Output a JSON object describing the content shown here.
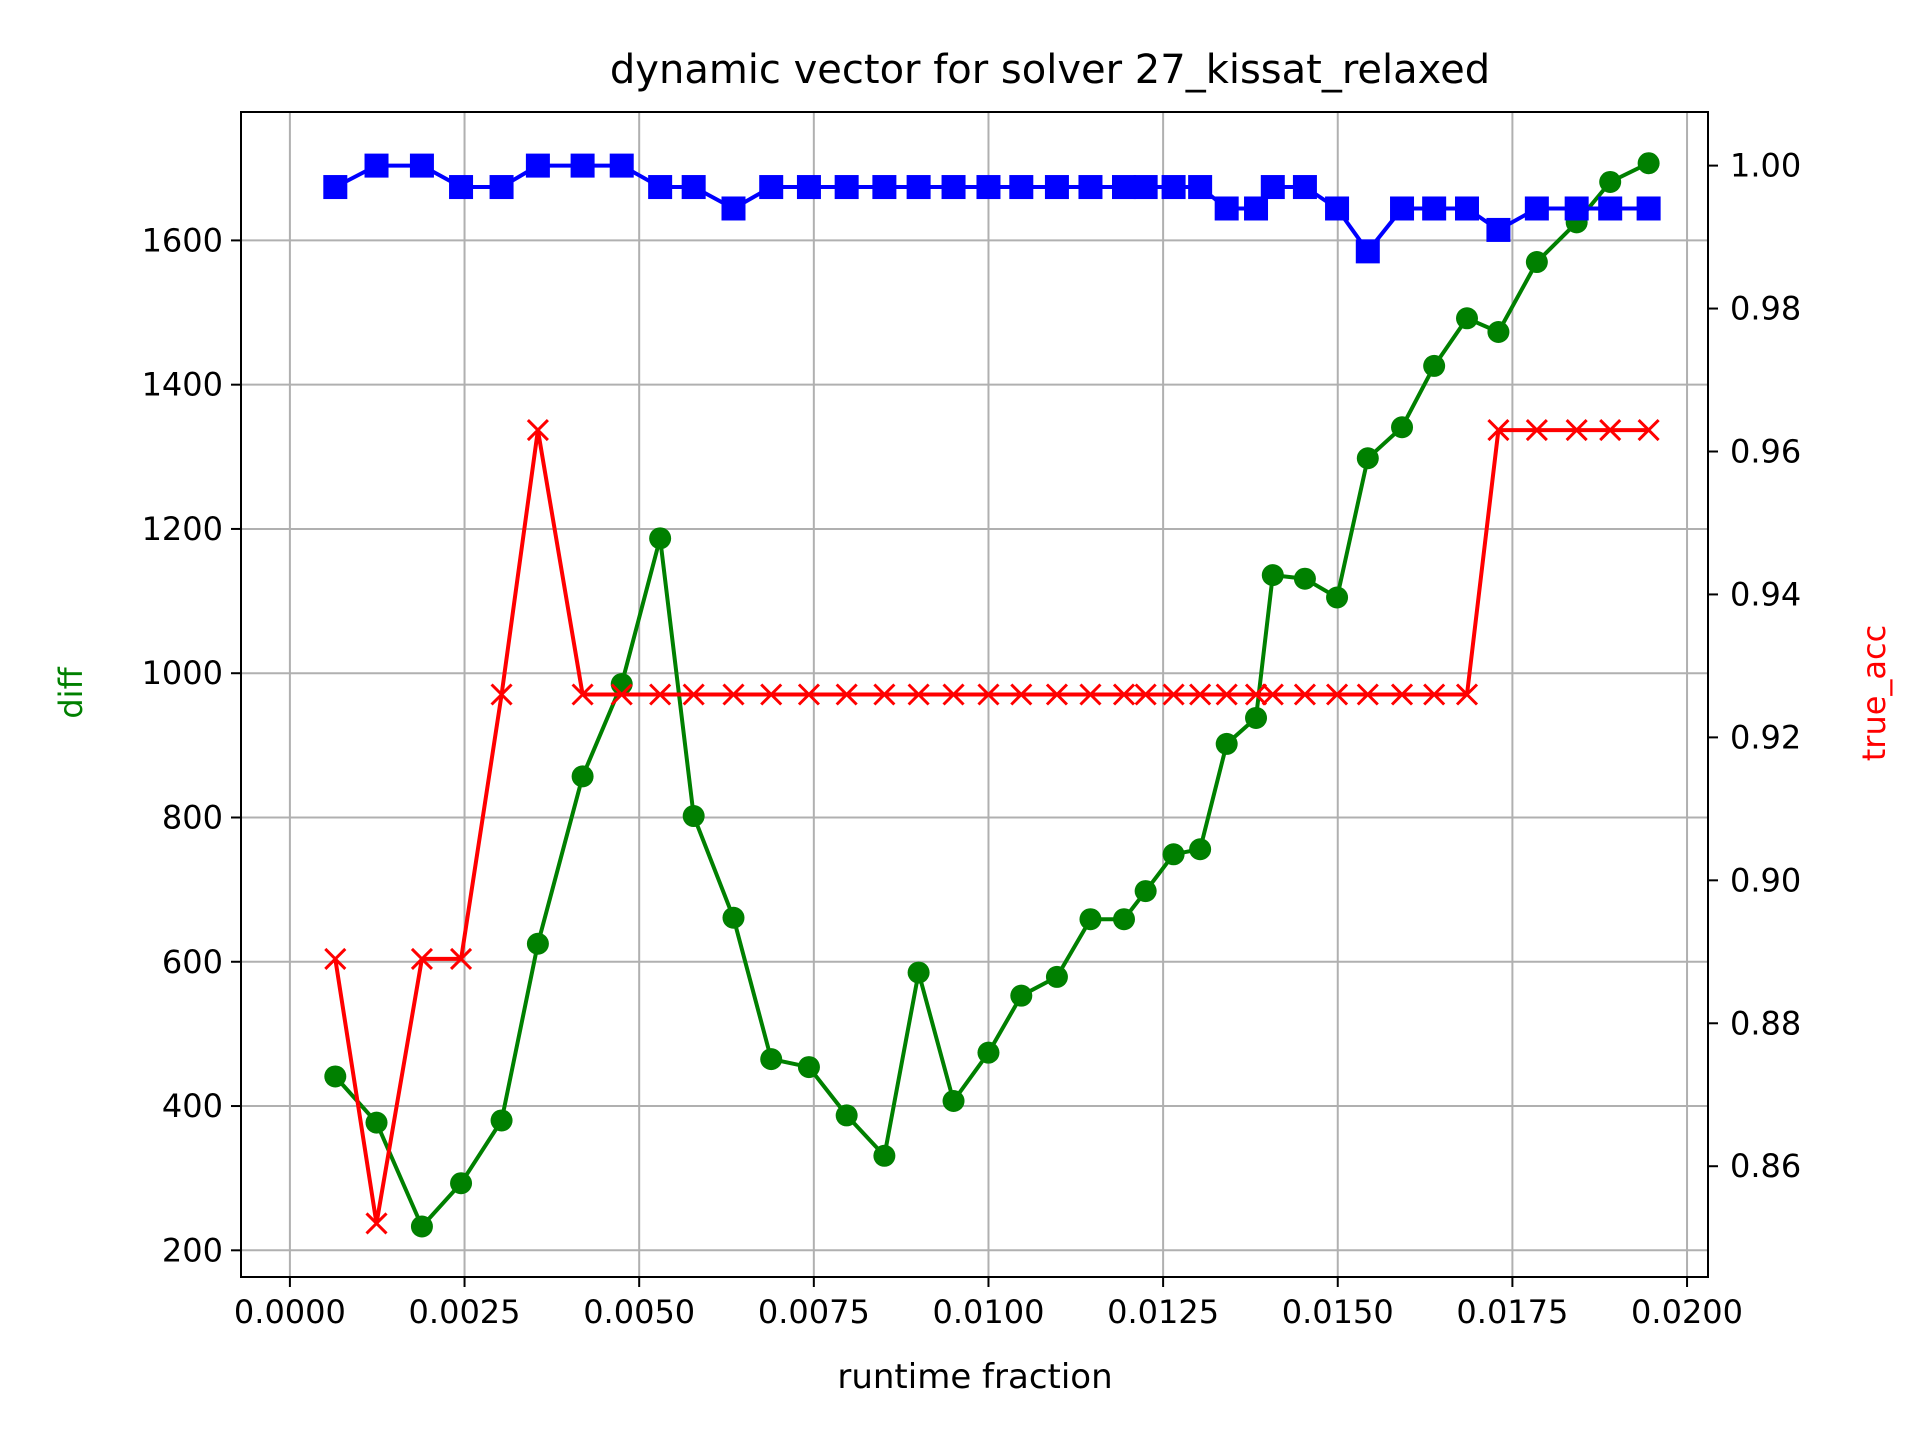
{
  "chart_data": {
    "type": "line",
    "title": "dynamic vector for solver 27_kissat_relaxed",
    "xlabel": "runtime fraction",
    "ylabel": "diff",
    "ylabel_right": "true_acc",
    "xlim": [
      -0.0007,
      0.0203
    ],
    "ylim": [
      163,
      1778
    ],
    "ylim_right": [
      0.8445,
      1.0075
    ],
    "xticks": [
      0.0,
      0.0025,
      0.005,
      0.0075,
      0.01,
      0.0125,
      0.015,
      0.0175,
      0.02
    ],
    "xtick_labels": [
      "0.0000",
      "0.0025",
      "0.0050",
      "0.0075",
      "0.0100",
      "0.0125",
      "0.0150",
      "0.0175",
      "0.0200"
    ],
    "yticks": [
      200,
      400,
      600,
      800,
      1000,
      1200,
      1400,
      1600
    ],
    "ytick_labels": [
      "200",
      "400",
      "600",
      "800",
      "1000",
      "1200",
      "1400",
      "1600"
    ],
    "yticks_right": [
      0.86,
      0.88,
      0.9,
      0.92,
      0.94,
      0.96,
      0.98,
      1.0
    ],
    "ytick_labels_right": [
      "0.86",
      "0.88",
      "0.90",
      "0.92",
      "0.94",
      "0.96",
      "0.98",
      "1.00"
    ],
    "grid": true,
    "colors": {
      "diff": "#008000",
      "true_acc": "#ff0000",
      "blue_series": "#0000ff"
    },
    "x": [
      0.00065,
      0.00124,
      0.00189,
      0.00245,
      0.00303,
      0.00355,
      0.00419,
      0.00475,
      0.0053,
      0.00578,
      0.00635,
      0.00689,
      0.00743,
      0.00797,
      0.00851,
      0.009,
      0.0095,
      0.01,
      0.01047,
      0.01098,
      0.01146,
      0.01194,
      0.01225,
      0.01265,
      0.01303,
      0.01341,
      0.01383,
      0.01407,
      0.01453,
      0.01499,
      0.01543,
      0.01592,
      0.01638,
      0.01685,
      0.0173,
      0.01785,
      0.01842,
      0.0189,
      0.01945
    ],
    "series": [
      {
        "axis": "left",
        "marker": "circle",
        "values": [
          441,
          377,
          233,
          293,
          380,
          625,
          857,
          985,
          1187,
          802,
          661,
          465,
          454,
          387,
          331,
          585,
          407,
          474,
          553,
          579,
          659,
          659,
          698,
          749,
          756,
          902,
          938,
          1136,
          1131,
          1105,
          1298,
          1341,
          1426,
          1492,
          1473,
          1570,
          1625,
          1681,
          1707
        ]
      },
      {
        "axis": "right",
        "marker": "x",
        "values": [
          0.889,
          0.852,
          0.889,
          0.889,
          0.926,
          0.963,
          0.926,
          0.926,
          0.926,
          0.926,
          0.926,
          0.926,
          0.926,
          0.926,
          0.926,
          0.926,
          0.926,
          0.926,
          0.926,
          0.926,
          0.926,
          0.926,
          0.926,
          0.926,
          0.926,
          0.926,
          0.926,
          0.926,
          0.926,
          0.926,
          0.926,
          0.926,
          0.926,
          0.926,
          0.963,
          0.963,
          0.963,
          0.963,
          0.963
        ]
      },
      {
        "axis": "right",
        "marker": "square",
        "values": [
          0.997,
          1.0,
          1.0,
          0.997,
          0.997,
          1.0,
          1.0,
          1.0,
          0.997,
          0.997,
          0.994,
          0.997,
          0.997,
          0.997,
          0.997,
          0.997,
          0.997,
          0.997,
          0.997,
          0.997,
          0.997,
          0.997,
          0.997,
          0.997,
          0.997,
          0.994,
          0.994,
          0.997,
          0.997,
          0.994,
          0.988,
          0.994,
          0.994,
          0.994,
          0.991,
          0.994,
          0.994,
          0.994,
          0.994
        ]
      }
    ]
  }
}
